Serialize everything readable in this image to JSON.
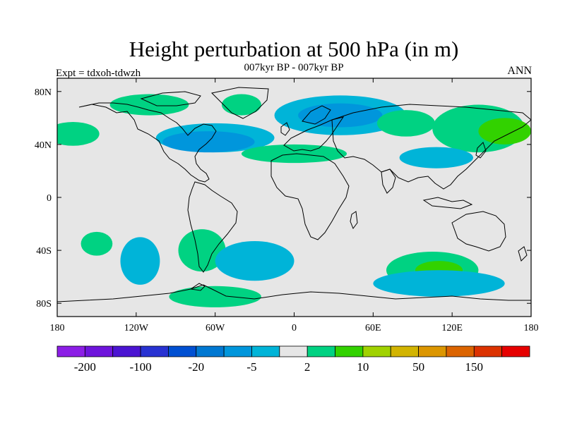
{
  "figure": {
    "title": "Height perturbation at 500 hPa (in m)",
    "subtitle": "007kyr BP - 007kyr BP",
    "left_label": "Expt = tdxoh-tdwzh",
    "right_label": "ANN"
  },
  "map": {
    "projection": "cylindrical-equidistant",
    "background_color": "#e6e6e6",
    "coastline_color": "#000000",
    "lat_ticks": [
      {
        "value": 80,
        "label": "80N"
      },
      {
        "value": 40,
        "label": "40N"
      },
      {
        "value": 0,
        "label": "0"
      },
      {
        "value": -40,
        "label": "40S"
      },
      {
        "value": -80,
        "label": "80S"
      }
    ],
    "lon_ticks": [
      {
        "value": -180,
        "label": "180"
      },
      {
        "value": -120,
        "label": "120W"
      },
      {
        "value": -60,
        "label": "60W"
      },
      {
        "value": 0,
        "label": "0"
      },
      {
        "value": 60,
        "label": "60E"
      },
      {
        "value": 120,
        "label": "120E"
      },
      {
        "value": 180,
        "label": "180"
      }
    ],
    "fields": [
      {
        "name": "neg-n-atlantic",
        "level": -5,
        "color": "#00b4d8",
        "lon": -60,
        "lat": 45,
        "rx": 45,
        "ry": 11
      },
      {
        "name": "neg-n-atlantic-core",
        "level": -20,
        "color": "#0096dc",
        "lon": -65,
        "lat": 42,
        "rx": 35,
        "ry": 8
      },
      {
        "name": "neg-eurasia",
        "level": -5,
        "color": "#00b4d8",
        "lon": 35,
        "lat": 62,
        "rx": 50,
        "ry": 15
      },
      {
        "name": "neg-eurasia-core",
        "level": -20,
        "color": "#0096dc",
        "lon": 35,
        "lat": 62,
        "rx": 32,
        "ry": 9
      },
      {
        "name": "pos-n-america",
        "level": 2,
        "color": "#00d282",
        "lon": -110,
        "lat": 70,
        "rx": 30,
        "ry": 8
      },
      {
        "name": "pos-greenland",
        "level": 2,
        "color": "#00d282",
        "lon": -40,
        "lat": 70,
        "rx": 15,
        "ry": 8
      },
      {
        "name": "pos-n-pacific",
        "level": 2,
        "color": "#00d282",
        "lon": 140,
        "lat": 52,
        "rx": 35,
        "ry": 18
      },
      {
        "name": "pos-n-pacific-core",
        "level": 10,
        "color": "#32d200",
        "lon": 160,
        "lat": 50,
        "rx": 20,
        "ry": 10
      },
      {
        "name": "pos-asia",
        "level": 2,
        "color": "#00d282",
        "lon": 85,
        "lat": 56,
        "rx": 22,
        "ry": 10
      },
      {
        "name": "pos-mediterranean",
        "level": 2,
        "color": "#00d282",
        "lon": 0,
        "lat": 33,
        "rx": 40,
        "ry": 7
      },
      {
        "name": "neg-china",
        "level": -5,
        "color": "#00b4d8",
        "lon": 108,
        "lat": 30,
        "rx": 28,
        "ry": 8
      },
      {
        "name": "pos-w-pacific",
        "level": 2,
        "color": "#00d282",
        "lon": -168,
        "lat": 48,
        "rx": 20,
        "ry": 9
      },
      {
        "name": "pos-s-america",
        "level": 2,
        "color": "#00d282",
        "lon": -70,
        "lat": -40,
        "rx": 18,
        "ry": 16
      },
      {
        "name": "neg-s-pacific",
        "level": -5,
        "color": "#00b4d8",
        "lon": -117,
        "lat": -48,
        "rx": 15,
        "ry": 18
      },
      {
        "name": "neg-s-atlantic",
        "level": -5,
        "color": "#00b4d8",
        "lon": -30,
        "lat": -48,
        "rx": 30,
        "ry": 15
      },
      {
        "name": "pos-s-indian",
        "level": 2,
        "color": "#00d282",
        "lon": 105,
        "lat": -55,
        "rx": 35,
        "ry": 14
      },
      {
        "name": "pos-s-indian-core",
        "level": 10,
        "color": "#32d200",
        "lon": 110,
        "lat": -55,
        "rx": 18,
        "ry": 7
      },
      {
        "name": "neg-s-indian-ring",
        "level": -5,
        "color": "#00b4d8",
        "lon": 110,
        "lat": -65,
        "rx": 50,
        "ry": 10
      },
      {
        "name": "pos-antarctic",
        "level": 2,
        "color": "#00d282",
        "lon": -60,
        "lat": -75,
        "rx": 35,
        "ry": 8
      },
      {
        "name": "pos-s-pacific-w",
        "level": 2,
        "color": "#00d282",
        "lon": -150,
        "lat": -35,
        "rx": 12,
        "ry": 9
      }
    ]
  },
  "colorbar": {
    "colors": [
      "#8c1ee6",
      "#6e14dc",
      "#4b14d2",
      "#2832d2",
      "#0050d2",
      "#0078d2",
      "#0096dc",
      "#00b4d8",
      "#e6e6e6",
      "#00d282",
      "#32d200",
      "#a0d200",
      "#d2b400",
      "#dc9600",
      "#dc6400",
      "#dc3200",
      "#e60000"
    ],
    "labels": [
      {
        "boundary": 1,
        "text": "-200"
      },
      {
        "boundary": 3,
        "text": "-100"
      },
      {
        "boundary": 5,
        "text": "-20"
      },
      {
        "boundary": 7,
        "text": "-5"
      },
      {
        "boundary": 9,
        "text": "2"
      },
      {
        "boundary": 11,
        "text": "10"
      },
      {
        "boundary": 13,
        "text": "50"
      },
      {
        "boundary": 15,
        "text": "150"
      }
    ]
  }
}
